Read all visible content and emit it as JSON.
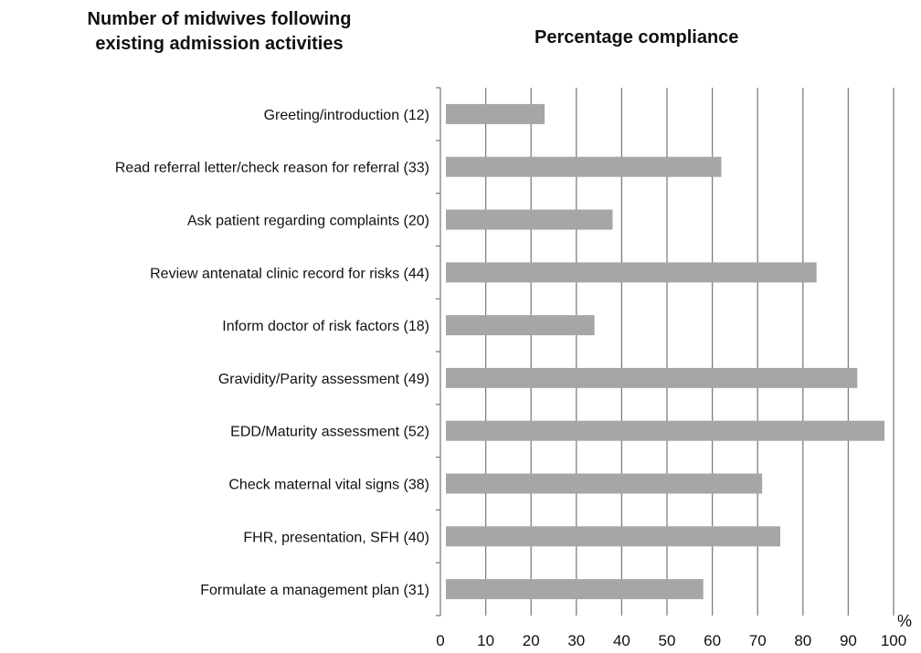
{
  "titles": {
    "left_line1": "Number of midwives following",
    "left_line2": "existing admission activities",
    "right": "Percentage compliance"
  },
  "chart_data": {
    "type": "bar",
    "orientation": "horizontal",
    "categories": [
      "Greeting/introduction (12)",
      "Read referral letter/check reason for referral (33)",
      "Ask patient regarding complaints (20)",
      "Review antenatal clinic record for risks (44)",
      "Inform doctor of risk factors (18)",
      "Gravidity/Parity assessment (49)",
      "EDD/Maturity assessment (52)",
      "Check maternal vital signs (38)",
      "FHR, presentation, SFH (40)",
      "Formulate a management plan (31)"
    ],
    "values": [
      23,
      62,
      38,
      83,
      34,
      92,
      98,
      71,
      75,
      58
    ],
    "xlim": [
      0,
      100
    ],
    "xticks": [
      "0",
      "10",
      "20",
      "30",
      "40",
      "50",
      "60",
      "70",
      "80",
      "90",
      "100"
    ],
    "xunit": "%",
    "grid": true,
    "bar_color": "#a6a6a6",
    "grid_color": "#7f7f7f"
  }
}
